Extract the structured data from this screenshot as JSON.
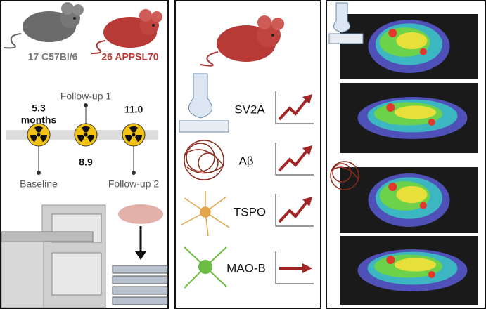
{
  "groups": [
    {
      "label": "17 C57Bl/6"
    },
    {
      "label": "26 APPSL70"
    }
  ],
  "timepoints": [
    {
      "time": "5.3",
      "unit": "months",
      "label": "Baseline"
    },
    {
      "time": "8.9",
      "label": "Follow-up 1"
    },
    {
      "time": "11.0",
      "label": "Follow-up 2"
    }
  ],
  "markers": [
    {
      "label": "SV2A"
    },
    {
      "label": "Aβ"
    },
    {
      "label": "TSPO"
    },
    {
      "label": "MAO-B"
    }
  ]
}
